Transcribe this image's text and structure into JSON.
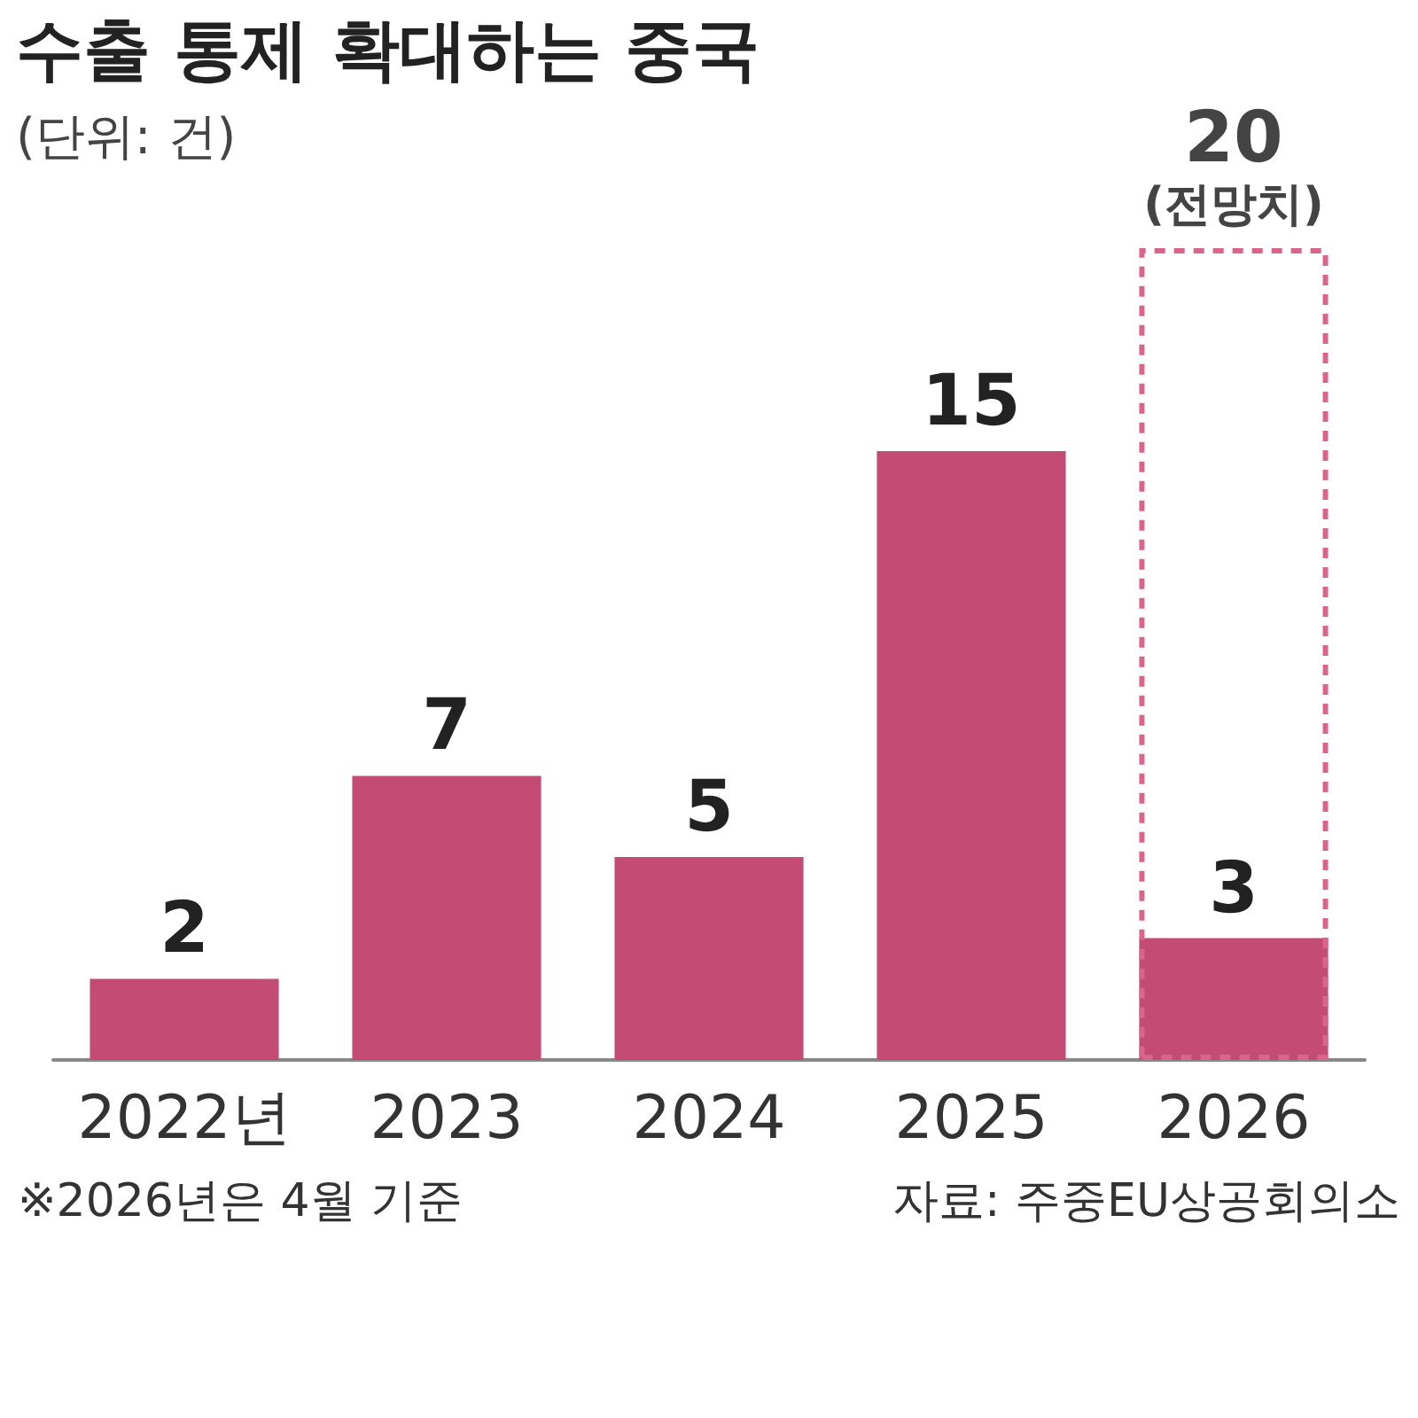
{
  "chart_data": {
    "type": "bar",
    "title": "수출 통제 확대하는 중국",
    "subtitle": "(단위: 건)",
    "categories": [
      "2022년",
      "2023",
      "2024",
      "2025",
      "2026"
    ],
    "series": [
      {
        "name": null,
        "color": "#c44b74",
        "values": [
          2,
          7,
          5,
          15,
          3
        ]
      },
      {
        "name": "(전망치)",
        "color": "#d9668a",
        "values": [
          null,
          null,
          null,
          null,
          20
        ],
        "line_style": "dashed"
      }
    ],
    "data_labels": true,
    "grid": false,
    "legend": false,
    "annotations": [
      "※2026년은 4월 기준",
      "자료: 주중EU상공회의소"
    ]
  }
}
